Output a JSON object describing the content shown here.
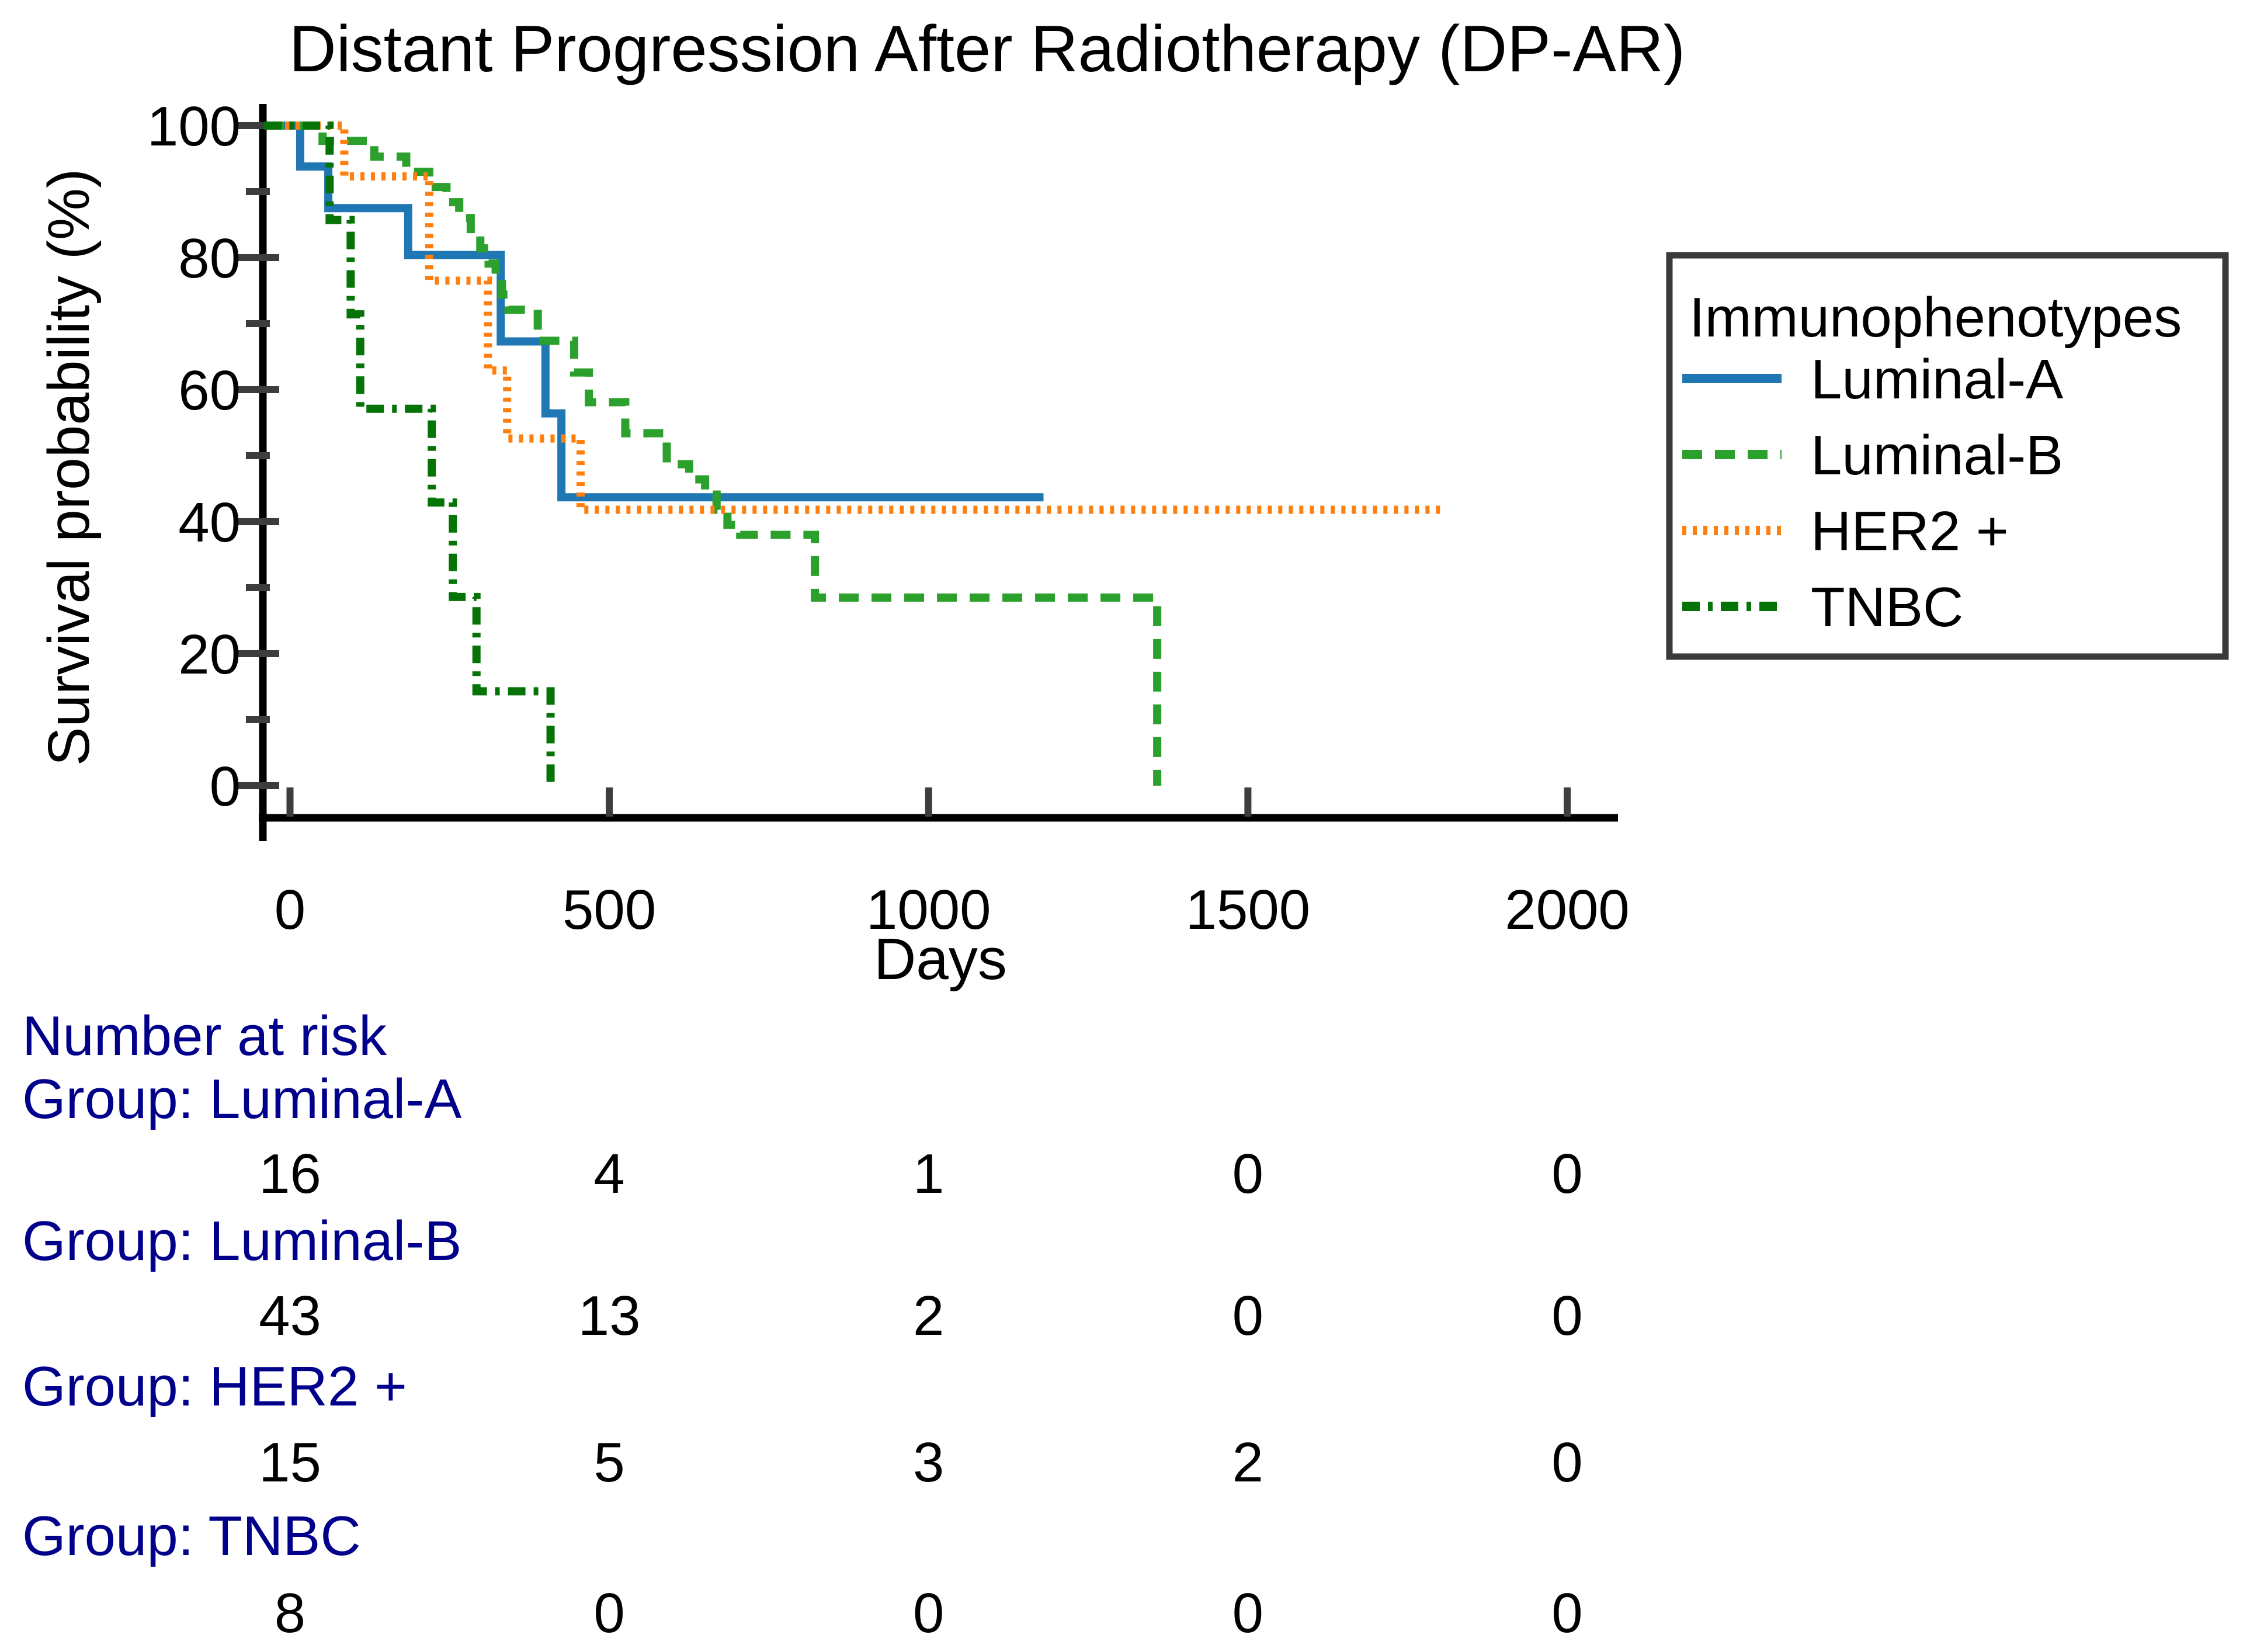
{
  "title": "Distant Progression After Radiotherapy (DP-AR)",
  "axes": {
    "xlabel": "Days",
    "ylabel": "Survival probability (%)",
    "x_ticks": [
      0,
      500,
      1000,
      1500,
      2000
    ],
    "y_major_ticks": [
      100,
      80,
      60,
      40,
      20,
      0
    ],
    "y_minor_ticks": [
      90,
      70,
      50,
      30,
      10
    ]
  },
  "colors": {
    "luminal_a": "#1f77b4",
    "luminal_b": "#2ca02c",
    "her2": "#ff7f0e",
    "tnbc": "#067306",
    "risk_label": "#00008B",
    "tick": "#3d3d3d",
    "spine": "#000000",
    "legend_border": "#3a3a3a"
  },
  "legend": {
    "title": "Immunophenotypes",
    "entries": [
      {
        "label": "Luminal-A",
        "color": "#1f77b4",
        "linestyle": "solid"
      },
      {
        "label": "Luminal-B",
        "color": "#2ca02c",
        "linestyle": "dashed"
      },
      {
        "label": "HER2 +",
        "color": "#ff7f0e",
        "linestyle": "densely-dotted"
      },
      {
        "label": "TNBC",
        "color": "#067306",
        "linestyle": "dashdot"
      }
    ]
  },
  "chart_data": {
    "type": "line",
    "subtype": "kaplan-meier-step",
    "title": "Distant Progression After Radiotherapy (DP-AR)",
    "xlabel": "Days",
    "ylabel": "Survival probability (%)",
    "xlim": [
      -40,
      2080
    ],
    "ylim": [
      -5,
      103
    ],
    "grid": false,
    "legend_position": "right",
    "series": [
      {
        "name": "Luminal-A",
        "color": "#1f77b4",
        "linestyle": "solid",
        "start_pct": 100,
        "drops": [
          [
            16,
            93.8
          ],
          [
            60,
            87.5
          ],
          [
            185,
            80.4
          ],
          [
            330,
            67.3
          ],
          [
            400,
            56.4
          ],
          [
            425,
            43.7
          ]
        ],
        "end_day": 1180
      },
      {
        "name": "Luminal-B",
        "color": "#2ca02c",
        "linestyle": "dashed",
        "start_pct": 100,
        "drops": [
          [
            51,
            97.7
          ],
          [
            132,
            95.3
          ],
          [
            182,
            93.0
          ],
          [
            218,
            90.7
          ],
          [
            245,
            88.4
          ],
          [
            265,
            86.0
          ],
          [
            283,
            83.7
          ],
          [
            298,
            81.4
          ],
          [
            311,
            79.1
          ],
          [
            322,
            76.7
          ],
          [
            332,
            74.4
          ],
          [
            342,
            72.1
          ],
          [
            388,
            67.4
          ],
          [
            445,
            62.6
          ],
          [
            468,
            58.1
          ],
          [
            525,
            53.4
          ],
          [
            590,
            48.7
          ],
          [
            625,
            46.4
          ],
          [
            650,
            44.1
          ],
          [
            668,
            41.8
          ],
          [
            685,
            39.5
          ],
          [
            705,
            38.0
          ],
          [
            822,
            28.5
          ],
          [
            1358,
            0
          ]
        ],
        "end_day": 1358
      },
      {
        "name": "HER2 +",
        "color": "#ff7f0e",
        "linestyle": "densely-dotted",
        "start_pct": 100,
        "drops": [
          [
            85,
            92.3
          ],
          [
            218,
            76.5
          ],
          [
            310,
            62.9
          ],
          [
            340,
            52.6
          ],
          [
            455,
            41.8
          ]
        ],
        "end_day": 1806
      },
      {
        "name": "TNBC",
        "color": "#067306",
        "linestyle": "dashdot",
        "start_pct": 100,
        "drops": [
          [
            62,
            85.7
          ],
          [
            95,
            71.4
          ],
          [
            110,
            57.1
          ],
          [
            222,
            42.9
          ],
          [
            255,
            28.6
          ],
          [
            292,
            14.3
          ],
          [
            408,
            0
          ]
        ],
        "end_day": 408
      }
    ]
  },
  "risk_table": {
    "header": "Number at risk",
    "columns_days": [
      0,
      500,
      1000,
      1500,
      2000
    ],
    "groups": [
      {
        "label": "Group: Luminal-A",
        "values": [
          16,
          4,
          1,
          0,
          0
        ]
      },
      {
        "label": "Group: Luminal-B",
        "values": [
          43,
          13,
          2,
          0,
          0
        ]
      },
      {
        "label": "Group: HER2 +",
        "values": [
          15,
          5,
          3,
          2,
          0
        ]
      },
      {
        "label": "Group: TNBC",
        "values": [
          8,
          0,
          0,
          0,
          0
        ]
      }
    ]
  }
}
